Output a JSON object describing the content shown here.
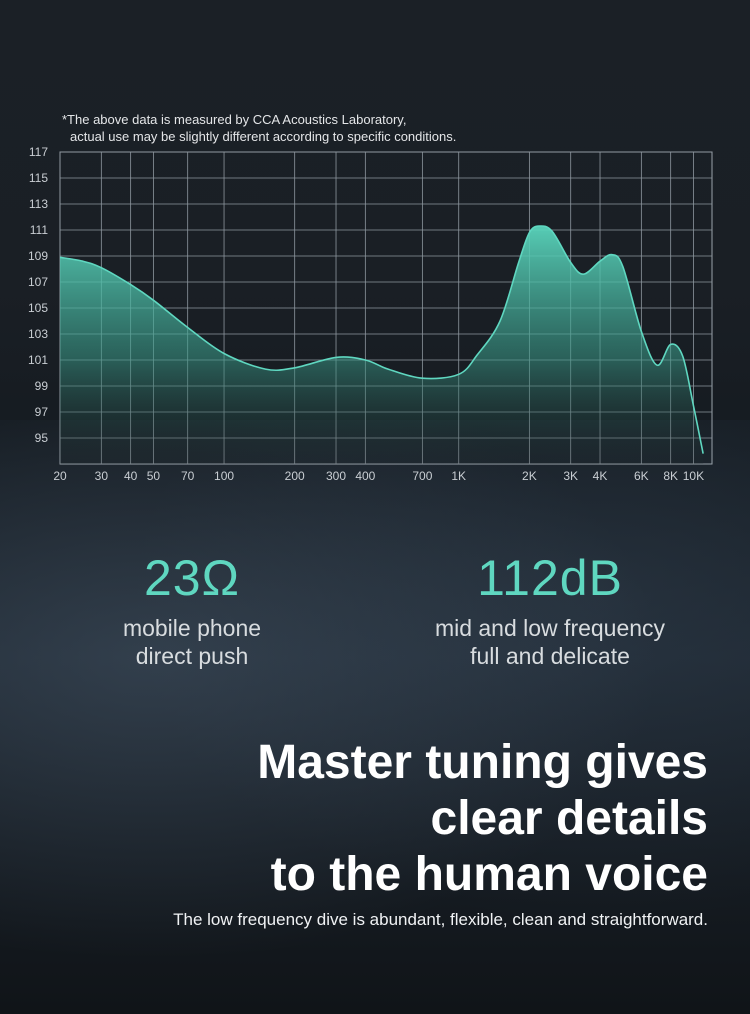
{
  "note": {
    "line1": "*The above data is measured by CCA Acoustics Laboratory,",
    "line2": "actual use may be slightly different according to specific conditions."
  },
  "chart_data": {
    "type": "area",
    "title": "",
    "xlabel": "",
    "ylabel": "",
    "x_scale": "log",
    "xlim": [
      20,
      12000
    ],
    "ylim": [
      93,
      117
    ],
    "grid": true,
    "line_color": "#5fd7c0",
    "fill_color_top": "#5ad6bd",
    "fill_color_bottom": "#1e2a2a",
    "y_ticks": [
      95,
      97,
      99,
      101,
      103,
      105,
      107,
      109,
      111,
      113,
      115,
      117
    ],
    "x_ticks": [
      {
        "value": 20,
        "label": "20"
      },
      {
        "value": 30,
        "label": "30"
      },
      {
        "value": 40,
        "label": "40"
      },
      {
        "value": 50,
        "label": "50"
      },
      {
        "value": 70,
        "label": "70"
      },
      {
        "value": 100,
        "label": "100"
      },
      {
        "value": 200,
        "label": "200"
      },
      {
        "value": 300,
        "label": "300"
      },
      {
        "value": 400,
        "label": "400"
      },
      {
        "value": 700,
        "label": "700"
      },
      {
        "value": 1000,
        "label": "1K"
      },
      {
        "value": 2000,
        "label": "2K"
      },
      {
        "value": 3000,
        "label": "3K"
      },
      {
        "value": 4000,
        "label": "4K"
      },
      {
        "value": 6000,
        "label": "6K"
      },
      {
        "value": 8000,
        "label": "8K"
      },
      {
        "value": 10000,
        "label": "10K"
      }
    ],
    "series": [
      {
        "x": [
          20,
          25,
          30,
          40,
          50,
          70,
          100,
          150,
          200,
          300,
          400,
          500,
          700,
          1000,
          1200,
          1500,
          1800,
          2000,
          2200,
          2500,
          3000,
          3400,
          4000,
          4500,
          5000,
          6000,
          7000,
          8000,
          9000,
          10000,
          11000
        ],
        "y": [
          108.9,
          108.6,
          108.1,
          106.8,
          105.6,
          103.5,
          101.5,
          100.3,
          100.4,
          101.2,
          101.0,
          100.3,
          99.6,
          99.9,
          101.4,
          104.0,
          108.5,
          110.8,
          111.3,
          110.9,
          108.5,
          107.6,
          108.6,
          109.1,
          108.2,
          103.2,
          100.6,
          102.2,
          101.3,
          97.5,
          93.8
        ]
      }
    ]
  },
  "stats": [
    {
      "value": "23Ω",
      "desc1": "mobile phone",
      "desc2": "direct push"
    },
    {
      "value": "112dB",
      "desc1": "mid and low frequency",
      "desc2": "full and delicate"
    }
  ],
  "headline": {
    "line1": "Master tuning gives",
    "line2": "clear details",
    "line3": "to the human voice"
  },
  "subheadline": "The low frequency dive is abundant, flexible, clean and straightforward."
}
